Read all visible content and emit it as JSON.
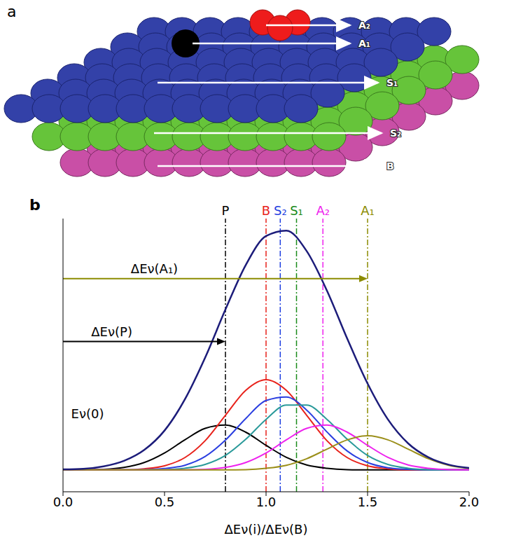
{
  "panel_a": {
    "label": "a",
    "arrows": [
      "A₂",
      "A₁",
      "S₁",
      "S₂",
      "B"
    ]
  },
  "chart_data": {
    "type": "line",
    "label": "b",
    "x_label": "ΔEν(i)/ΔEν(B)",
    "x": [
      0,
      0.1,
      0.2,
      0.3,
      0.4,
      0.5,
      0.6,
      0.7,
      0.8,
      0.9,
      1.0,
      1.1,
      1.2,
      1.3,
      1.4,
      1.5,
      1.6,
      1.7,
      1.8,
      1.9,
      2.0
    ],
    "series": [
      {
        "color": "#000000",
        "values": [
          8,
          8,
          8.2,
          8.9,
          10.7,
          14.2,
          19.0,
          23.2,
          24.4,
          21.8,
          17.0,
          12.6,
          9.8,
          8.6,
          8.1,
          8.0,
          8,
          8,
          8,
          8,
          8
        ]
      },
      {
        "color": "#e8221b",
        "values": [
          8,
          8,
          8,
          8,
          8.4,
          9.5,
          12.5,
          18.7,
          28.0,
          37.1,
          41,
          37.1,
          28.0,
          18.7,
          12.5,
          9.5,
          8.4,
          8,
          8,
          8,
          8
        ]
      },
      {
        "color": "#2b3fe0",
        "values": [
          8,
          8,
          8,
          8,
          8.1,
          8.5,
          9.7,
          12.9,
          18.9,
          26.8,
          33.4,
          34.7,
          29.9,
          21.9,
          14.9,
          10.7,
          8.8,
          8.2,
          8,
          8,
          8
        ]
      },
      {
        "color": "#2a9a9a",
        "values": [
          8,
          8,
          8,
          8,
          8,
          8.1,
          8.6,
          10.0,
          13.3,
          19.2,
          26.5,
          31.7,
          31.7,
          26.5,
          19.2,
          13.3,
          10.0,
          8.6,
          8.1,
          8,
          8
        ]
      },
      {
        "color": "#ee22ee",
        "values": [
          8,
          8,
          8,
          8,
          8,
          8,
          8.0,
          8.2,
          8.9,
          10.7,
          14.2,
          19.0,
          23.2,
          24.4,
          21.8,
          17.0,
          12.6,
          9.8,
          8.6,
          8.1,
          8.0
        ]
      },
      {
        "color": "#9b8f1a",
        "values": [
          8,
          8,
          8,
          8,
          8,
          8,
          8,
          8,
          8,
          8.1,
          8.6,
          9.7,
          12.1,
          15.6,
          19.0,
          20.5,
          19.0,
          15.6,
          12.1,
          9.7,
          8.6
        ]
      },
      {
        "color": "#1c1c7a",
        "values": [
          8.2,
          8.4,
          9.3,
          11.3,
          15.3,
          22.4,
          33.8,
          49.1,
          66.7,
          83.0,
          93.6,
          95.6,
          88.1,
          73.6,
          56.0,
          39.6,
          26.5,
          17.7,
          12.6,
          9.9,
          8.7
        ]
      }
    ],
    "reference_lines": [
      {
        "label": "P",
        "x": 0.8,
        "color": "#000000"
      },
      {
        "label": "B",
        "x": 1.0,
        "color": "#e8221b"
      },
      {
        "label": "S₂",
        "x": 1.07,
        "color": "#1f3fe0"
      },
      {
        "label": "S₁",
        "x": 1.15,
        "color": "#1a8a1a"
      },
      {
        "label": "A₂",
        "x": 1.28,
        "color": "#ee22ee"
      },
      {
        "label": "A₁",
        "x": 1.5,
        "color": "#8b8b00"
      }
    ],
    "arrows": [
      {
        "label": "ΔEν(A₁)",
        "from": 0,
        "to": 1.5,
        "y": 78,
        "color": "#8b8b00"
      },
      {
        "label": "ΔEν(P)",
        "from": 0,
        "to": 0.8,
        "y": 55,
        "color": "#000000"
      }
    ],
    "annotations": [
      {
        "text": "Eν(0)",
        "x": 0.04,
        "y": 27
      }
    ],
    "xlim": [
      0,
      2.0
    ],
    "xticks": [
      {
        "value": 0,
        "label": "0.0"
      },
      0.5,
      {
        "value": 1.0,
        "label": "1.0"
      },
      1.5,
      {
        "value": 2.0,
        "label": "2.0"
      }
    ],
    "ylim": [
      0,
      100
    ],
    "tick_labels": "x"
  }
}
